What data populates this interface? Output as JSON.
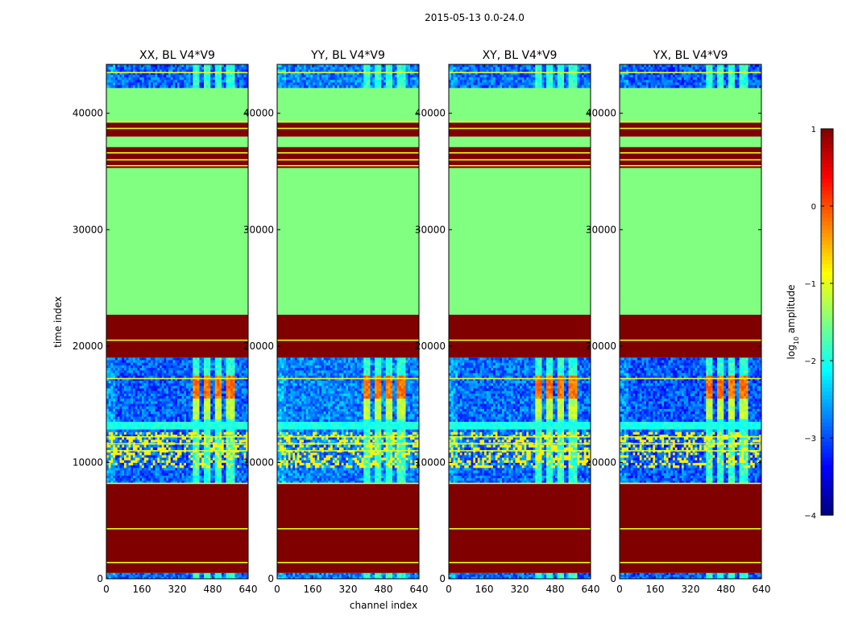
{
  "chart_data": {
    "type": "heatmap",
    "suptitle": "2015-05-13 0.0-24.0",
    "xlabel": "channel index",
    "ylabel": "time index",
    "x_ticks": [
      0,
      160,
      320,
      480,
      640
    ],
    "x_range": [
      0,
      640
    ],
    "y_ticks": [
      0,
      10000,
      20000,
      30000,
      40000
    ],
    "y_range": [
      0,
      44200
    ],
    "panels": [
      {
        "title": "XX, BL V4*V9",
        "noise_shift": 0
      },
      {
        "title": "YY, BL V4*V9",
        "noise_shift": 0.15
      },
      {
        "title": "XY, BL V4*V9",
        "noise_shift": 0.05
      },
      {
        "title": "YX, BL V4*V9",
        "noise_shift": -0.05
      }
    ],
    "time_blocks": [
      {
        "t0": 0,
        "t1": 500,
        "kind": "data"
      },
      {
        "t0": 500,
        "t1": 8200,
        "kind": "flag_high"
      },
      {
        "t0": 8200,
        "t1": 19000,
        "kind": "data"
      },
      {
        "t0": 19000,
        "t1": 22700,
        "kind": "flag_high"
      },
      {
        "t0": 22700,
        "t1": 35300,
        "kind": "flag_mid"
      },
      {
        "t0": 35300,
        "t1": 37100,
        "kind": "flag_high"
      },
      {
        "t0": 37100,
        "t1": 38000,
        "kind": "flag_mid"
      },
      {
        "t0": 38000,
        "t1": 39200,
        "kind": "flag_high"
      },
      {
        "t0": 39200,
        "t1": 42200,
        "kind": "flag_mid"
      },
      {
        "t0": 42200,
        "t1": 44200,
        "kind": "data"
      }
    ],
    "flag_lines": [
      1400,
      4300,
      8200,
      11000,
      11600,
      12200,
      17200,
      20500,
      35500,
      36000,
      36600,
      38700,
      39300,
      43500
    ],
    "signal_channels": [
      {
        "c0": 395,
        "c1": 420
      },
      {
        "c0": 440,
        "c1": 470
      },
      {
        "c0": 495,
        "c1": 520
      },
      {
        "c0": 545,
        "c1": 575
      }
    ],
    "colorbar": {
      "label": "log10 amplitude",
      "range": [
        -4,
        1
      ],
      "ticks": [
        {
          "v": 1,
          "t": "1"
        },
        {
          "v": 0,
          "t": "0"
        },
        {
          "v": -1,
          "t": "−1"
        },
        {
          "v": -2,
          "t": "−2"
        },
        {
          "v": -3,
          "t": "−3"
        },
        {
          "v": -4,
          "t": "−4"
        }
      ],
      "cmap": "jet"
    }
  }
}
